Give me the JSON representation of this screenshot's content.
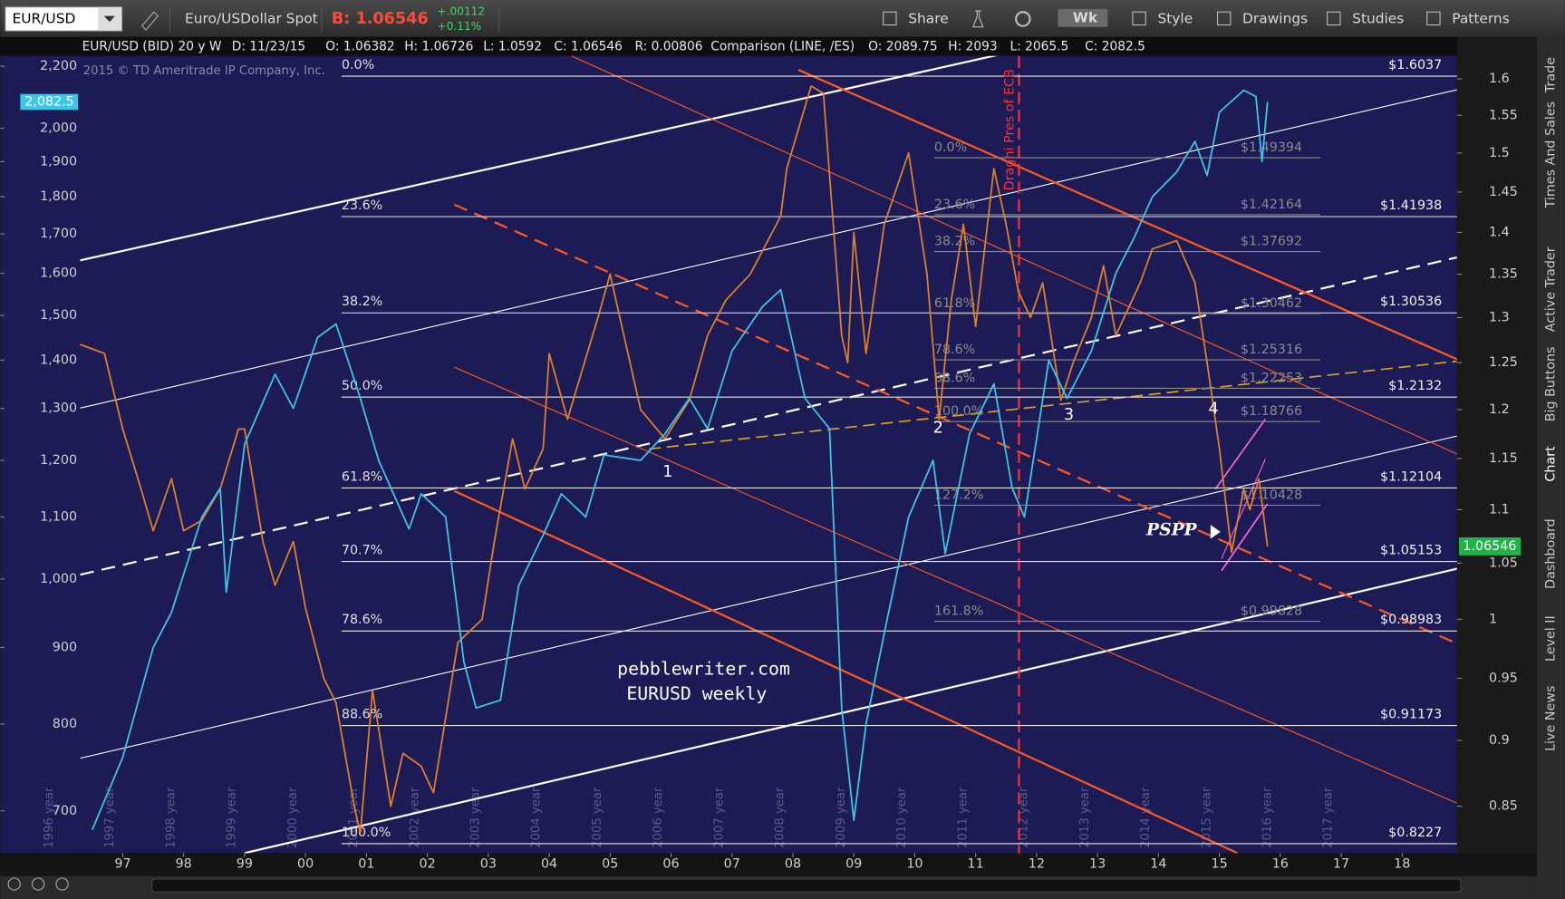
{
  "toolbar": {
    "symbol": "EUR/USD",
    "description": "Euro/USDollar Spot",
    "bid": "B: 1.06546",
    "change": "+.00112",
    "change_pct": "+0.11%",
    "buttons": [
      "Share",
      "Wk",
      "Style",
      "Drawings",
      "Studies",
      "Patterns"
    ]
  },
  "side_tabs": [
    "Trade",
    "Times And Sales",
    "Active Trader",
    "Big Buttons",
    "Chart",
    "Dashboard",
    "Level II",
    "Live News"
  ],
  "chart_data": {
    "type": "line",
    "header": [
      "EUR/USD (BID) 20 y W",
      "D: 11/23/15",
      "O: 1.06382",
      "H: 1.06726",
      "L: 1.0592",
      "C: 1.06546",
      "R: 0.00806",
      "Comparison (LINE, /ES)",
      "O: 2089.75",
      "H: 2093",
      "L: 2065.5",
      "C: 2082.5"
    ],
    "copyright": "2015 © TD Ameritrade IP Company, Inc.",
    "log_scale": true,
    "xlim": [
      1996.3,
      2018.9
    ],
    "xticks": [
      {
        "value": 1997,
        "label": "97"
      },
      {
        "value": 1998,
        "label": "98"
      },
      {
        "value": 1999,
        "label": "99"
      },
      {
        "value": 2000,
        "label": "00"
      },
      {
        "value": 2001,
        "label": "01"
      },
      {
        "value": 2002,
        "label": "02"
      },
      {
        "value": 2003,
        "label": "03"
      },
      {
        "value": 2004,
        "label": "04"
      },
      {
        "value": 2005,
        "label": "05"
      },
      {
        "value": 2006,
        "label": "06"
      },
      {
        "value": 2007,
        "label": "07"
      },
      {
        "value": 2008,
        "label": "08"
      },
      {
        "value": 2009,
        "label": "09"
      },
      {
        "value": 2010,
        "label": "10"
      },
      {
        "value": 2011,
        "label": "11"
      },
      {
        "value": 2012,
        "label": "12"
      },
      {
        "value": 2013,
        "label": "13"
      },
      {
        "value": 2014,
        "label": "14"
      },
      {
        "value": 2015,
        "label": "15"
      },
      {
        "value": 2016,
        "label": "16"
      },
      {
        "value": 2017,
        "label": "17"
      },
      {
        "value": 2018,
        "label": "18"
      }
    ],
    "ylim": [
      656,
      2298
    ],
    "yticks": [
      {
        "value": 2200,
        "label": "2,200"
      },
      {
        "value": 2000,
        "label": "2,000"
      },
      {
        "value": 1900,
        "label": "1,900"
      },
      {
        "value": 1800,
        "label": "1,800"
      },
      {
        "value": 1700,
        "label": "1,700"
      },
      {
        "value": 1600,
        "label": "1,600"
      },
      {
        "value": 1500,
        "label": "1,500"
      },
      {
        "value": 1400,
        "label": "1,400"
      },
      {
        "value": 1300,
        "label": "1,300"
      },
      {
        "value": 1200,
        "label": "1,200"
      },
      {
        "value": 1100,
        "label": "1,100"
      },
      {
        "value": 1000,
        "label": "1,000"
      },
      900,
      800,
      700
    ],
    "y2lim": [
      0.816,
      1.658
    ],
    "y2ticks": [
      1.6,
      1.55,
      1.5,
      1.45,
      1.4,
      1.35,
      1.3,
      1.25,
      1.2,
      1.15,
      1.1,
      1.05,
      1,
      0.95,
      0.9,
      0.85
    ],
    "y_current": {
      "value": 2082.5,
      "label": "2,082.5"
    },
    "y2_current": 1.06546,
    "series": [
      {
        "axis": "y2",
        "color": "#e0802c",
        "x": [
          1996.3,
          1996.7,
          1997.0,
          1997.3,
          1997.5,
          1997.8,
          1998.0,
          1998.3,
          1998.6,
          1998.9,
          1999.0,
          1999.3,
          1999.5,
          1999.8,
          2000.0,
          2000.3,
          2000.5,
          2000.8,
          2000.9,
          2001.1,
          2001.4,
          2001.6,
          2001.9,
          2002.1,
          2002.5,
          2002.9,
          2003.1,
          2003.4,
          2003.6,
          2003.9,
          2004.0,
          2004.3,
          2004.8,
          2005.0,
          2005.5,
          2005.9,
          2006.3,
          2006.6,
          2006.9,
          2007.3,
          2007.8,
          2007.9,
          2008.3,
          2008.5,
          2008.8,
          2008.9,
          2009.0,
          2009.2,
          2009.5,
          2009.9,
          2010.2,
          2010.4,
          2010.6,
          2010.8,
          2011.0,
          2011.3,
          2011.5,
          2011.7,
          2011.9,
          2012.1,
          2012.4,
          2012.6,
          2012.9,
          2013.1,
          2013.3,
          2013.7,
          2013.9,
          2014.3,
          2014.6,
          2014.8,
          2015.0,
          2015.2,
          2015.4,
          2015.5,
          2015.65,
          2015.79
        ],
        "values": [
          1.27,
          1.26,
          1.18,
          1.12,
          1.08,
          1.13,
          1.08,
          1.09,
          1.12,
          1.18,
          1.18,
          1.07,
          1.03,
          1.07,
          1.01,
          0.95,
          0.93,
          0.85,
          0.83,
          0.94,
          0.85,
          0.89,
          0.88,
          0.86,
          0.98,
          1.0,
          1.07,
          1.17,
          1.12,
          1.16,
          1.26,
          1.19,
          1.3,
          1.35,
          1.2,
          1.17,
          1.21,
          1.28,
          1.32,
          1.35,
          1.42,
          1.48,
          1.59,
          1.58,
          1.28,
          1.25,
          1.4,
          1.26,
          1.41,
          1.5,
          1.35,
          1.19,
          1.32,
          1.41,
          1.29,
          1.48,
          1.41,
          1.33,
          1.3,
          1.34,
          1.21,
          1.25,
          1.3,
          1.36,
          1.28,
          1.34,
          1.38,
          1.39,
          1.34,
          1.25,
          1.16,
          1.06,
          1.12,
          1.1,
          1.13,
          1.06546
        ]
      },
      {
        "axis": "y",
        "color": "#3ec6e8",
        "x": [
          1996.5,
          1997.0,
          1997.5,
          1997.8,
          1998.3,
          1998.6,
          1998.7,
          1999.0,
          1999.5,
          1999.8,
          2000.2,
          2000.5,
          2000.9,
          2001.2,
          2001.7,
          2001.9,
          2002.3,
          2002.6,
          2002.8,
          2003.2,
          2003.5,
          2003.9,
          2004.2,
          2004.6,
          2004.9,
          2005.5,
          2005.9,
          2006.3,
          2006.6,
          2007.0,
          2007.5,
          2007.8,
          2008.2,
          2008.6,
          2008.8,
          2009.0,
          2009.2,
          2009.5,
          2009.9,
          2010.3,
          2010.5,
          2010.9,
          2011.3,
          2011.6,
          2011.8,
          2012.2,
          2012.5,
          2012.9,
          2013.3,
          2013.6,
          2013.9,
          2014.3,
          2014.6,
          2014.8,
          2015.0,
          2015.4,
          2015.6,
          2015.7,
          2015.79
        ],
        "values": [
          680,
          760,
          900,
          950,
          1100,
          1150,
          980,
          1230,
          1370,
          1300,
          1450,
          1480,
          1320,
          1200,
          1080,
          1140,
          1100,
          880,
          820,
          830,
          990,
          1070,
          1140,
          1100,
          1210,
          1200,
          1250,
          1320,
          1260,
          1420,
          1520,
          1560,
          1320,
          1260,
          820,
          690,
          800,
          920,
          1100,
          1200,
          1040,
          1250,
          1350,
          1150,
          1100,
          1400,
          1320,
          1420,
          1600,
          1690,
          1800,
          1870,
          1960,
          1860,
          2050,
          2120,
          2100,
          1900,
          2082.5
        ]
      }
    ],
    "fib_levels": [
      {
        "pct": "0.0%",
        "price": "$1.6037",
        "value": 1.6037
      },
      {
        "pct": "23.6%",
        "price": "$1.41938",
        "value": 1.41938
      },
      {
        "pct": "38.2%",
        "price": "$1.30536",
        "value": 1.30536
      },
      {
        "pct": "50.0%",
        "price": "$1.2132",
        "value": 1.2132
      },
      {
        "pct": "61.8%",
        "price": "$1.12104",
        "value": 1.12104
      },
      {
        "pct": "70.7%",
        "price": "$1.05153",
        "value": 1.05153
      },
      {
        "pct": "78.6%",
        "price": "$0.98983",
        "value": 0.98983
      },
      {
        "pct": "88.6%",
        "price": "$0.91173",
        "value": 0.91173
      },
      {
        "pct": "100.0%",
        "price": "$0.8227",
        "value": 0.8227
      }
    ],
    "fib_levels_2": [
      {
        "pct": "0.0%",
        "price": "$1.49394",
        "value": 1.49394
      },
      {
        "pct": "23.6%",
        "price": "$1.42164",
        "value": 1.42164
      },
      {
        "pct": "38.2%",
        "price": "$1.37692",
        "value": 1.37692
      },
      {
        "pct": "61.8%",
        "price": "$1.30462",
        "value": 1.30462
      },
      {
        "pct": "78.6%",
        "price": "$1.25316",
        "value": 1.25316
      },
      {
        "pct": "88.6%",
        "price": "$1.22253",
        "value": 1.22253
      },
      {
        "pct": "100.0%",
        "price": "$1.18766",
        "value": 1.18766
      },
      {
        "pct": "127.2%",
        "price": "$1.10428",
        "value": 1.10428
      },
      {
        "pct": "161.8%",
        "price": "$0.99828",
        "value": 0.99828
      }
    ],
    "annotations": [
      "Draghi Pres of ECB",
      "1",
      "2",
      "3",
      "4",
      "PSPP",
      "pebblewriter.com",
      "EURUSD weekly"
    ],
    "year_markers": [
      "1996 year",
      "1997 year",
      "1998 year",
      "1999 year",
      "2000 year",
      "2001 year",
      "2002 year",
      "2003 year",
      "2004 year",
      "2005 year",
      "2006 year",
      "2007 year",
      "2008 year",
      "2009 year",
      "2010 year",
      "2011 year",
      "2012 year",
      "2013 year",
      "2014 year",
      "2015 year",
      "2016 year",
      "2017 year"
    ]
  }
}
